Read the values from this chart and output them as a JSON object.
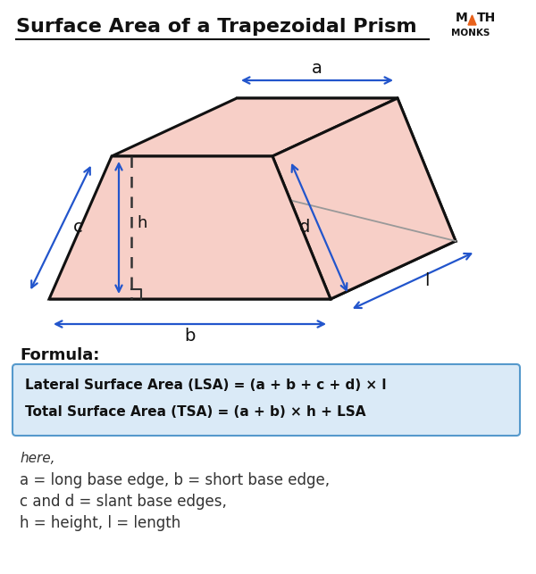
{
  "title": "Surface Area of a Trapezoidal Prism",
  "title_fontsize": 16,
  "bg_color": "#ffffff",
  "trapezoid_fill": "#f7cfc7",
  "trapezoid_edge": "#111111",
  "arrow_color": "#2255cc",
  "label_color": "#111111",
  "formula_box_fill": "#daeaf7",
  "formula_box_edge": "#5599cc",
  "formula_line1": "Lateral Surface Area (LSA) = (a + b + c + d) × l",
  "formula_line2": "Total Surface Area (TSA) = (a + b) × h + LSA",
  "formula_label": "Formula:",
  "note_lines": [
    "here,",
    "a = long base edge, b = short base edge,",
    "c and d = slant base edges,",
    "h = height, l = length"
  ],
  "logo_color": "#e8611a"
}
